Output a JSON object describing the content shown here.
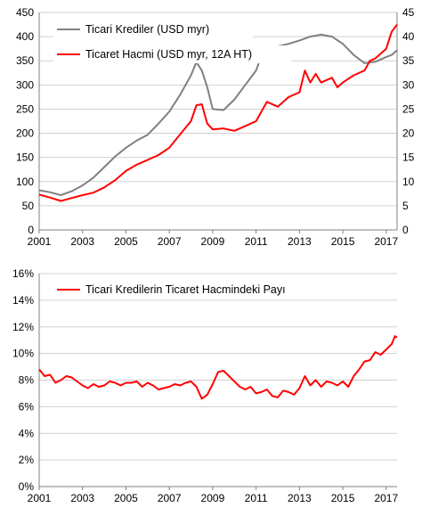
{
  "colors": {
    "loans": "#808080",
    "volume": "#ff0000",
    "share": "#ff0000",
    "axis": "#808080",
    "grid": "#d0d0d0"
  },
  "chart_data": [
    {
      "type": "line",
      "xlim": [
        2001,
        2017.5
      ],
      "x_ticks": [
        "2001",
        "2003",
        "2005",
        "2007",
        "2009",
        "2011",
        "2013",
        "2015",
        "2017"
      ],
      "left_axis": {
        "ylim": [
          0,
          450
        ],
        "ticks": [
          "0",
          "50",
          "100",
          "150",
          "200",
          "250",
          "300",
          "350",
          "400",
          "450"
        ]
      },
      "right_axis": {
        "ylim": [
          0,
          45
        ],
        "ticks": [
          "0",
          "5",
          "10",
          "15",
          "20",
          "25",
          "30",
          "35",
          "40",
          "45"
        ]
      },
      "grid": "horizontal",
      "legend_position": "top-left",
      "series": [
        {
          "name": "Ticari Krediler (USD myr)",
          "axis": "left",
          "color": "#808080",
          "points": [
            [
              2001.0,
              82
            ],
            [
              2001.5,
              78
            ],
            [
              2002.0,
              72
            ],
            [
              2002.5,
              80
            ],
            [
              2003.0,
              92
            ],
            [
              2003.5,
              108
            ],
            [
              2004.0,
              130
            ],
            [
              2004.5,
              152
            ],
            [
              2005.0,
              170
            ],
            [
              2005.5,
              185
            ],
            [
              2006.0,
              197
            ],
            [
              2006.5,
              220
            ],
            [
              2007.0,
              245
            ],
            [
              2007.5,
              280
            ],
            [
              2008.0,
              320
            ],
            [
              2008.25,
              347
            ],
            [
              2008.5,
              330
            ],
            [
              2008.75,
              295
            ],
            [
              2009.0,
              250
            ],
            [
              2009.5,
              248
            ],
            [
              2010.0,
              270
            ],
            [
              2010.5,
              300
            ],
            [
              2011.0,
              330
            ],
            [
              2011.25,
              360
            ],
            [
              2011.5,
              372
            ],
            [
              2012.0,
              380
            ],
            [
              2012.5,
              385
            ],
            [
              2013.0,
              392
            ],
            [
              2013.5,
              400
            ],
            [
              2014.0,
              404
            ],
            [
              2014.5,
              400
            ],
            [
              2015.0,
              385
            ],
            [
              2015.5,
              362
            ],
            [
              2016.0,
              345
            ],
            [
              2016.5,
              348
            ],
            [
              2017.0,
              358
            ],
            [
              2017.25,
              362
            ],
            [
              2017.5,
              372
            ]
          ]
        },
        {
          "name": "Ticaret Hacmi (USD myr, 12A HT)",
          "axis": "right",
          "color": "#ff0000",
          "points": [
            [
              2001.0,
              7.3
            ],
            [
              2001.5,
              6.7
            ],
            [
              2002.0,
              6.0
            ],
            [
              2002.5,
              6.6
            ],
            [
              2003.0,
              7.2
            ],
            [
              2003.5,
              7.7
            ],
            [
              2004.0,
              8.8
            ],
            [
              2004.5,
              10.3
            ],
            [
              2005.0,
              12.2
            ],
            [
              2005.5,
              13.5
            ],
            [
              2006.0,
              14.5
            ],
            [
              2006.5,
              15.5
            ],
            [
              2007.0,
              17.0
            ],
            [
              2007.5,
              19.8
            ],
            [
              2008.0,
              22.5
            ],
            [
              2008.25,
              25.8
            ],
            [
              2008.5,
              26.0
            ],
            [
              2008.75,
              22.0
            ],
            [
              2009.0,
              20.8
            ],
            [
              2009.5,
              21.0
            ],
            [
              2010.0,
              20.5
            ],
            [
              2010.5,
              21.5
            ],
            [
              2011.0,
              22.5
            ],
            [
              2011.5,
              26.5
            ],
            [
              2012.0,
              25.5
            ],
            [
              2012.5,
              27.5
            ],
            [
              2013.0,
              28.5
            ],
            [
              2013.25,
              33.0
            ],
            [
              2013.5,
              30.5
            ],
            [
              2013.75,
              32.3
            ],
            [
              2014.0,
              30.5
            ],
            [
              2014.5,
              31.5
            ],
            [
              2014.75,
              29.5
            ],
            [
              2015.0,
              30.5
            ],
            [
              2015.5,
              32.0
            ],
            [
              2016.0,
              33.0
            ],
            [
              2016.25,
              35.0
            ],
            [
              2016.5,
              35.5
            ],
            [
              2017.0,
              37.5
            ],
            [
              2017.25,
              41.0
            ],
            [
              2017.5,
              42.5
            ]
          ]
        }
      ]
    },
    {
      "type": "line",
      "xlim": [
        2001,
        2017.5
      ],
      "x_ticks": [
        "2001",
        "2003",
        "2005",
        "2007",
        "2009",
        "2011",
        "2013",
        "2015",
        "2017"
      ],
      "left_axis": {
        "ylim": [
          0,
          16
        ],
        "ticks": [
          "0%",
          "2%",
          "4%",
          "6%",
          "8%",
          "10%",
          "12%",
          "14%",
          "16%"
        ]
      },
      "grid": "horizontal",
      "legend_position": "top-left",
      "series": [
        {
          "name": "Ticari Kredilerin Ticaret Hacmindeki Payı",
          "axis": "left",
          "color": "#ff0000",
          "unit": "%",
          "points": [
            [
              2001.0,
              8.8
            ],
            [
              2001.25,
              8.3
            ],
            [
              2001.5,
              8.4
            ],
            [
              2001.75,
              7.8
            ],
            [
              2002.0,
              8.0
            ],
            [
              2002.25,
              8.3
            ],
            [
              2002.5,
              8.2
            ],
            [
              2002.75,
              7.9
            ],
            [
              2003.0,
              7.6
            ],
            [
              2003.25,
              7.4
            ],
            [
              2003.5,
              7.7
            ],
            [
              2003.75,
              7.5
            ],
            [
              2004.0,
              7.6
            ],
            [
              2004.25,
              7.9
            ],
            [
              2004.5,
              7.8
            ],
            [
              2004.75,
              7.6
            ],
            [
              2005.0,
              7.8
            ],
            [
              2005.25,
              7.8
            ],
            [
              2005.5,
              7.9
            ],
            [
              2005.75,
              7.5
            ],
            [
              2006.0,
              7.8
            ],
            [
              2006.25,
              7.6
            ],
            [
              2006.5,
              7.3
            ],
            [
              2006.75,
              7.4
            ],
            [
              2007.0,
              7.5
            ],
            [
              2007.25,
              7.7
            ],
            [
              2007.5,
              7.6
            ],
            [
              2007.75,
              7.8
            ],
            [
              2008.0,
              7.9
            ],
            [
              2008.25,
              7.5
            ],
            [
              2008.5,
              6.6
            ],
            [
              2008.75,
              6.9
            ],
            [
              2009.0,
              7.7
            ],
            [
              2009.25,
              8.6
            ],
            [
              2009.5,
              8.7
            ],
            [
              2009.75,
              8.3
            ],
            [
              2010.0,
              7.9
            ],
            [
              2010.25,
              7.5
            ],
            [
              2010.5,
              7.3
            ],
            [
              2010.75,
              7.5
            ],
            [
              2011.0,
              7.0
            ],
            [
              2011.25,
              7.1
            ],
            [
              2011.5,
              7.3
            ],
            [
              2011.75,
              6.8
            ],
            [
              2012.0,
              6.7
            ],
            [
              2012.25,
              7.2
            ],
            [
              2012.5,
              7.1
            ],
            [
              2012.75,
              6.9
            ],
            [
              2013.0,
              7.4
            ],
            [
              2013.25,
              8.3
            ],
            [
              2013.5,
              7.6
            ],
            [
              2013.75,
              8.0
            ],
            [
              2014.0,
              7.5
            ],
            [
              2014.25,
              7.9
            ],
            [
              2014.5,
              7.8
            ],
            [
              2014.75,
              7.6
            ],
            [
              2015.0,
              7.9
            ],
            [
              2015.25,
              7.5
            ],
            [
              2015.5,
              8.3
            ],
            [
              2015.75,
              8.8
            ],
            [
              2016.0,
              9.4
            ],
            [
              2016.25,
              9.5
            ],
            [
              2016.5,
              10.1
            ],
            [
              2016.75,
              9.9
            ],
            [
              2017.0,
              10.3
            ],
            [
              2017.25,
              10.7
            ],
            [
              2017.4,
              11.3
            ],
            [
              2017.5,
              11.2
            ]
          ]
        }
      ]
    }
  ]
}
